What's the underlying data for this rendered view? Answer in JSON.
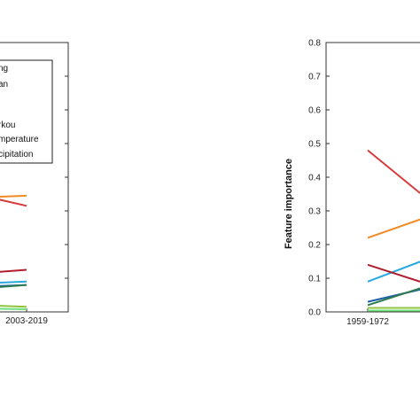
{
  "chart_data": [
    {
      "type": "line",
      "x": [
        "",
        "2003-2019"
      ],
      "xlim": [
        1959,
        2019
      ],
      "ylim": [
        0,
        0.8
      ],
      "grid": false,
      "legend": {
        "placement": "top-left",
        "entries": [
          "ng",
          "an",
          "",
          "rkou",
          "mperature",
          "cipitation"
        ]
      },
      "series": [
        {
          "color": "#f08a24",
          "values": [
            0.34,
            0.345
          ]
        },
        {
          "color": "#d63b3b",
          "values": [
            0.345,
            0.315
          ]
        },
        {
          "color": "#b01e2e",
          "values": [
            0.115,
            0.125
          ]
        },
        {
          "color": "#29a8e0",
          "values": [
            0.085,
            0.09
          ]
        },
        {
          "color": "#1f5fa8",
          "values": [
            0.075,
            0.08
          ]
        },
        {
          "color": "#2e7d4f",
          "values": [
            0.07,
            0.08
          ]
        },
        {
          "color": "#90c43f",
          "values": [
            0.02,
            0.015
          ]
        },
        {
          "color": "#6ee27a",
          "values": [
            0.01,
            0.008
          ]
        }
      ]
    },
    {
      "type": "line",
      "x": [
        "1959-1972",
        ""
      ],
      "xlim": [
        1959,
        2019
      ],
      "ylim": [
        0,
        0.8
      ],
      "yticks": [
        "0.0",
        "0.1",
        "0.2",
        "0.3",
        "0.4",
        "0.5",
        "0.6",
        "0.7",
        "0.8"
      ],
      "ylabel": "Feature importance",
      "grid": false,
      "series": [
        {
          "color": "#d63b3b",
          "values": [
            0.48,
            0.34
          ]
        },
        {
          "color": "#f08a24",
          "values": [
            0.22,
            0.28
          ]
        },
        {
          "color": "#29a8e0",
          "values": [
            0.09,
            0.155
          ]
        },
        {
          "color": "#b01e2e",
          "values": [
            0.14,
            0.085
          ]
        },
        {
          "color": "#1f5fa8",
          "values": [
            0.03,
            0.07
          ]
        },
        {
          "color": "#2e7d4f",
          "values": [
            0.02,
            0.075
          ]
        },
        {
          "color": "#90c43f",
          "values": [
            0.012,
            0.012
          ]
        },
        {
          "color": "#6ee27a",
          "values": [
            0.004,
            0.004
          ]
        }
      ]
    }
  ]
}
